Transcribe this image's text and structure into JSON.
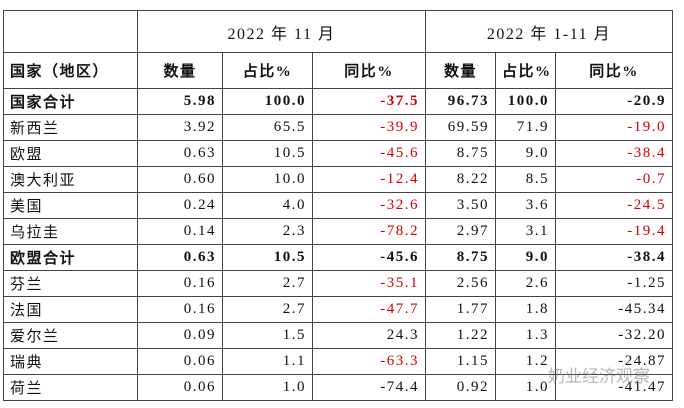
{
  "table": {
    "header_top": [
      "2022 年 11 月",
      "2022 年 1-11 月"
    ],
    "header": [
      "国家（地区）",
      "数量",
      "占比%",
      "同比%",
      "数量",
      "占比%",
      "同比%"
    ],
    "rows": [
      [
        "国家合计",
        "5.98",
        "100.0",
        "-37.5",
        "96.73",
        "100.0",
        "-20.9"
      ],
      [
        "新西兰",
        "3.92",
        "65.5",
        "-39.9",
        "69.59",
        "71.9",
        "-19.0"
      ],
      [
        "欧盟",
        "0.63",
        "10.5",
        "-45.6",
        "8.75",
        "9.0",
        "-38.4"
      ],
      [
        "澳大利亚",
        "0.60",
        "10.0",
        "-12.4",
        "8.22",
        "8.5",
        "-0.7"
      ],
      [
        "美国",
        "0.24",
        "4.0",
        "-32.6",
        "3.50",
        "3.6",
        "-24.5"
      ],
      [
        "乌拉圭",
        "0.14",
        "2.3",
        "-78.2",
        "2.97",
        "3.1",
        "-19.4"
      ],
      [
        "欧盟合计",
        "0.63",
        "10.5",
        "-45.6",
        "8.75",
        "9.0",
        "-38.4"
      ],
      [
        "芬兰",
        "0.16",
        "2.7",
        "-35.1",
        "2.56",
        "2.6",
        "-1.25"
      ],
      [
        "法国",
        "0.16",
        "2.7",
        "-47.7",
        "1.77",
        "1.8",
        "-45.34"
      ],
      [
        "爱尔兰",
        "0.09",
        "1.5",
        "24.3",
        "1.22",
        "1.3",
        "-32.20"
      ],
      [
        "瑞典",
        "0.06",
        "1.1",
        "-63.3",
        "1.15",
        "1.2",
        "-24.87"
      ],
      [
        "荷兰",
        "0.06",
        "1.0",
        "-74.4",
        "0.92",
        "1.0",
        "-41.47"
      ]
    ],
    "bold_rows": [
      0,
      6
    ],
    "red_color": "#d40000",
    "red_cells": [
      [
        0,
        3
      ],
      [
        1,
        3
      ],
      [
        1,
        6
      ],
      [
        2,
        3
      ],
      [
        2,
        6
      ],
      [
        3,
        3
      ],
      [
        3,
        6
      ],
      [
        4,
        3
      ],
      [
        4,
        6
      ],
      [
        5,
        3
      ],
      [
        5,
        6
      ],
      [
        7,
        3
      ],
      [
        8,
        3
      ],
      [
        10,
        3
      ]
    ]
  },
  "watermark": "奶业经济观察"
}
